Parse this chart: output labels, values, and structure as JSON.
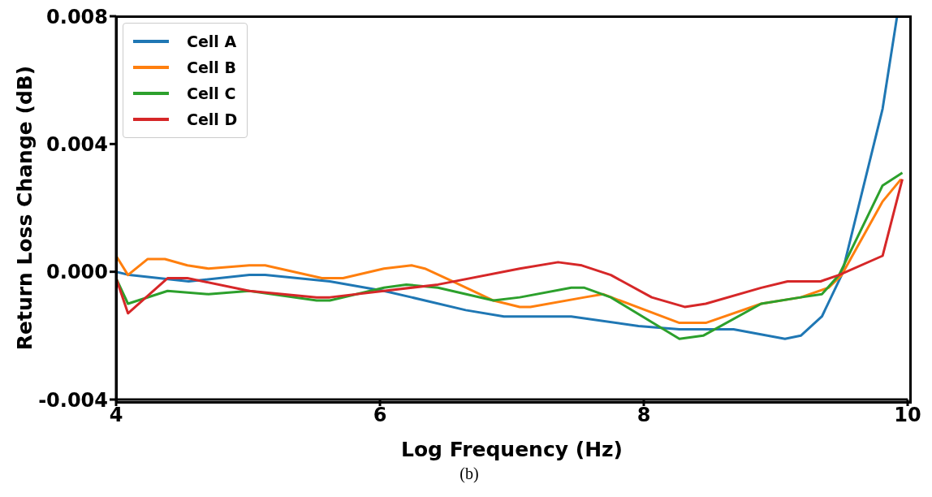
{
  "chart_data": {
    "type": "line",
    "xlabel": "Log Frequency (Hz)",
    "ylabel": "Return Loss Change (dB)",
    "xlim": [
      4,
      10
    ],
    "xticks": [
      4,
      6,
      8,
      10
    ],
    "ylim": [
      -0.004,
      0.008
    ],
    "yticks": [
      {
        "value": -0.004,
        "label": "-0.004"
      },
      {
        "value": 0,
        "label": "0.000"
      },
      {
        "value": 0.004,
        "label": "0.004"
      },
      {
        "value": 0.008,
        "label": "0.008"
      }
    ],
    "grid": false,
    "legend": "top left",
    "marker": "none",
    "line_style": "solid",
    "annotations": [
      "(b)"
    ],
    "series": [
      {
        "name": "Cell A",
        "color": "#1f77b4",
        "x": [
          4.0,
          4.1,
          4.55,
          5.01,
          5.13,
          5.62,
          6.03,
          6.24,
          6.65,
          6.94,
          7.45,
          7.96,
          8.27,
          8.68,
          9.07,
          9.19,
          9.35,
          9.5,
          9.81,
          9.92
        ],
        "values": [
          0,
          -0.0001,
          -0.0003,
          -0.0001,
          -0.0001,
          -0.0003,
          -0.0006,
          -0.0008,
          -0.0012,
          -0.0014,
          -0.0014,
          -0.0017,
          -0.0018,
          -0.0018,
          -0.0021,
          -0.002,
          -0.0014,
          -0.0001,
          0.0051,
          0.008
        ]
      },
      {
        "name": "Cell B",
        "color": "#ff7f0e",
        "x": [
          4.0,
          4.09,
          4.24,
          4.37,
          4.54,
          4.7,
          5.01,
          5.13,
          5.56,
          5.72,
          6.03,
          6.24,
          6.34,
          6.55,
          6.86,
          7.06,
          7.14,
          7.55,
          7.69,
          8.27,
          8.47,
          8.89,
          9.19,
          9.4,
          9.5,
          9.81,
          9.95
        ],
        "values": [
          0.0005,
          -0.0001,
          0.0004,
          0.0004,
          0.0002,
          0.0001,
          0.0002,
          0.0002,
          -0.0002,
          -0.0002,
          0.0001,
          0.0002,
          0.0001,
          -0.0003,
          -0.0009,
          -0.0011,
          -0.0011,
          -0.0008,
          -0.0007,
          -0.0016,
          -0.0016,
          -0.001,
          -0.0008,
          -0.0005,
          -0.0001,
          0.0022,
          0.0029
        ]
      },
      {
        "name": "Cell C",
        "color": "#2ca02c",
        "x": [
          4.0,
          4.09,
          4.39,
          4.7,
          5.01,
          5.52,
          5.62,
          6.03,
          6.2,
          6.44,
          6.86,
          7.06,
          7.45,
          7.55,
          7.75,
          8.27,
          8.45,
          8.89,
          9.19,
          9.35,
          9.48,
          9.81,
          9.96
        ],
        "values": [
          -0.0002,
          -0.001,
          -0.0006,
          -0.0007,
          -0.0006,
          -0.0009,
          -0.0009,
          -0.0005,
          -0.0004,
          -0.0005,
          -0.0009,
          -0.0008,
          -0.0005,
          -0.0005,
          -0.0008,
          -0.0021,
          -0.002,
          -0.001,
          -0.0008,
          -0.0007,
          -0.0001,
          0.0027,
          0.0031
        ]
      },
      {
        "name": "Cell D",
        "color": "#d62728",
        "x": [
          4.0,
          4.09,
          4.39,
          4.54,
          5.01,
          5.52,
          5.62,
          6.03,
          6.44,
          7.06,
          7.35,
          7.53,
          7.75,
          8.06,
          8.31,
          8.47,
          8.89,
          9.09,
          9.34,
          9.48,
          9.81,
          9.96
        ],
        "values": [
          -0.0002,
          -0.0013,
          -0.0002,
          -0.0002,
          -0.0006,
          -0.0008,
          -0.0008,
          -0.0006,
          -0.0004,
          0.0001,
          0.0003,
          0.0002,
          -0.0001,
          -0.0008,
          -0.0011,
          -0.001,
          -0.0005,
          -0.0003,
          -0.0003,
          -0.0001,
          0.0005,
          0.0029
        ]
      }
    ]
  }
}
